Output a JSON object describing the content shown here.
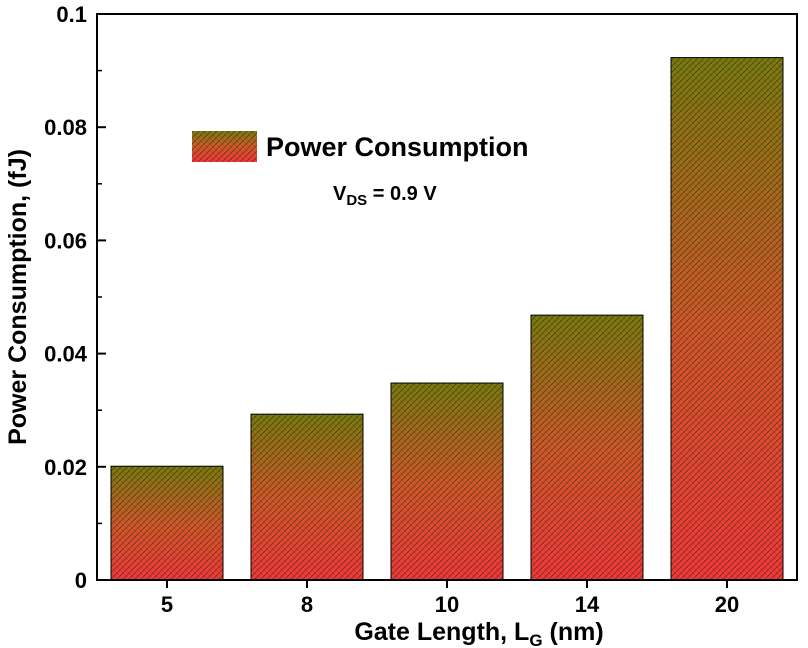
{
  "chart_data": {
    "type": "bar",
    "categories": [
      "5",
      "8",
      "10",
      "14",
      "20"
    ],
    "series": [
      {
        "name": "Power Consumption",
        "values": [
          0.0201,
          0.0293,
          0.0348,
          0.0468,
          0.0923
        ]
      }
    ],
    "xlabel": {
      "main": "Gate Length, L",
      "sub": "G",
      "tail": " (nm)"
    },
    "ylabel": "Power Consumption, (fJ)",
    "ylim": [
      0,
      0.1
    ],
    "yticks": [
      "0",
      "0.02",
      "0.04",
      "0.06",
      "0.08",
      "0.1"
    ],
    "ytick_values": [
      0,
      0.02,
      0.04,
      0.06,
      0.08,
      0.1
    ],
    "grid": false,
    "legend_position": "top-left",
    "annotation": {
      "main": "V",
      "sub": "DS",
      "tail": " = 0.9 V"
    },
    "colors": {
      "bar_top": "#7a7a10",
      "bar_mid": "#cc5a2a",
      "bar_bottom": "#ee3a3a",
      "hatch": "#000000"
    }
  }
}
